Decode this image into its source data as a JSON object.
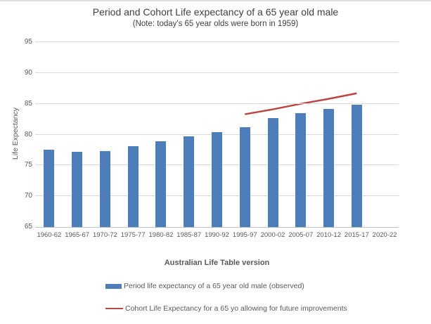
{
  "chart_data": {
    "type": "bar",
    "title": "Period and Cohort Life expectancy of a 65 year old male",
    "subtitle": "(Note: today's 65 year olds were born in 1959)",
    "xlabel": "Australian Life Table version",
    "ylabel": "Life Expectancy",
    "ylim": [
      65,
      95
    ],
    "yticks": [
      65,
      70,
      75,
      80,
      85,
      90,
      95
    ],
    "grid": true,
    "legend_position": "bottom",
    "grid_color": "#d9d9d9",
    "axis_color": "#bfbfbf",
    "categories": [
      "1960-62",
      "1965-67",
      "1970-72",
      "1975-77",
      "1980-82",
      "1985-87",
      "1990-92",
      "1995-97",
      "2000-02",
      "2005-07",
      "2010-12",
      "2015-17",
      "2020-22"
    ],
    "series": [
      {
        "name": "Period life expectancy of a 65 year old male (observed)",
        "type": "bar",
        "color": "#4e7eba",
        "values": [
          77.5,
          77.2,
          77.3,
          78.1,
          78.9,
          79.7,
          80.4,
          81.2,
          82.7,
          83.5,
          84.2,
          84.9,
          null
        ]
      },
      {
        "name": "Cohort Life Expectancy for a 65 yo allowing for future improvements",
        "type": "line",
        "color": "#bc4542",
        "stroke_width": 2.5,
        "x_categories": [
          "1995-97",
          "2000-02",
          "2005-07",
          "2010-12",
          "2015-17"
        ],
        "values": [
          83.3,
          84.1,
          85.0,
          85.8,
          86.7
        ]
      }
    ]
  }
}
